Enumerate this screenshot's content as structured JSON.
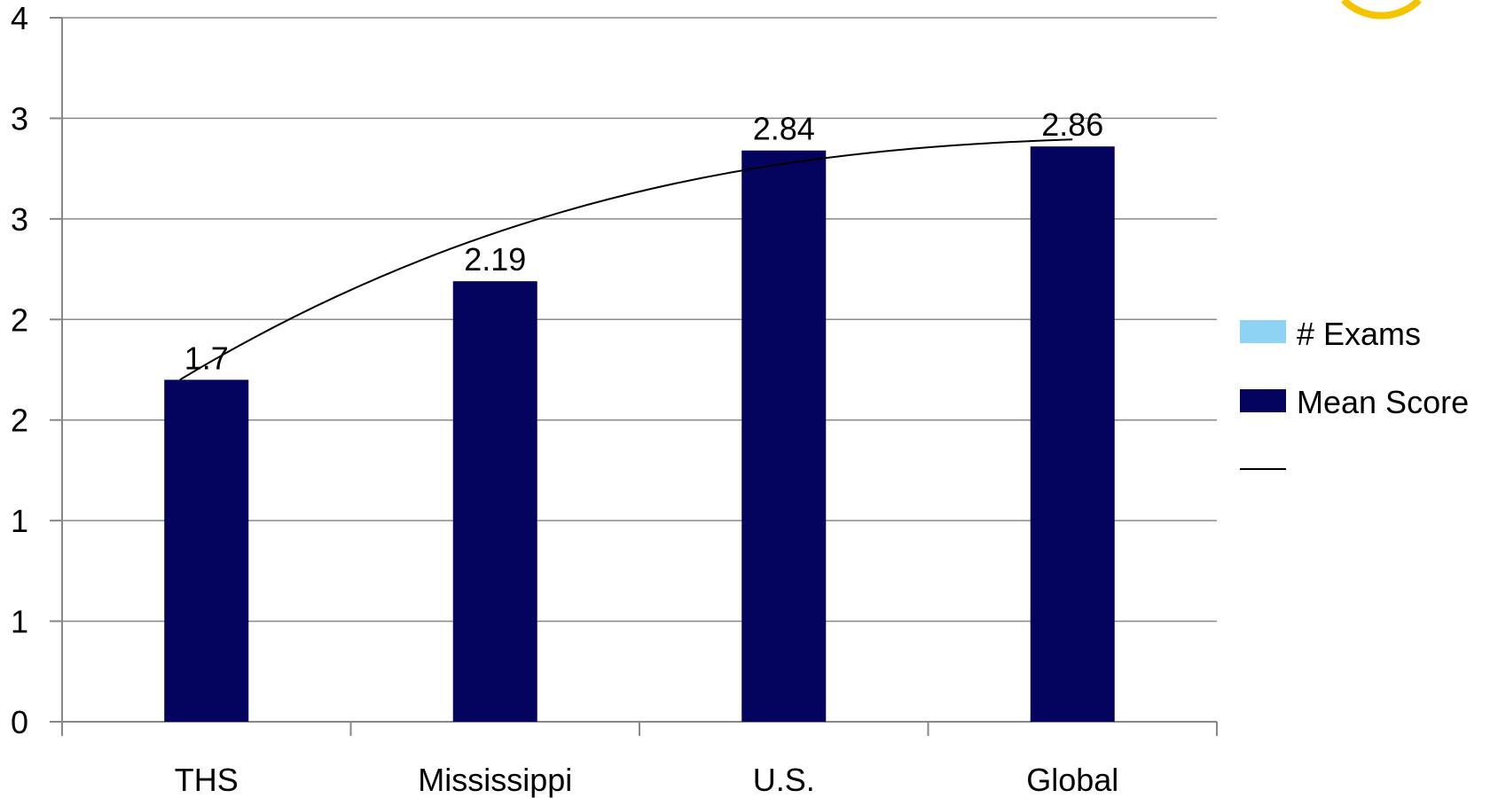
{
  "chart_data": {
    "type": "bar",
    "categories": [
      "THS",
      "Mississippi",
      "U.S.",
      "Global"
    ],
    "series": [
      {
        "name": "# Exams",
        "values": [
          null,
          null,
          null,
          null
        ],
        "color": "#8fd3f4"
      },
      {
        "name": "Mean Score",
        "values": [
          1.7,
          2.19,
          2.84,
          2.86
        ],
        "data_labels": [
          "1.7",
          "2.19",
          "2.84",
          "2.86"
        ],
        "color": "#04045e"
      }
    ],
    "trendline": {
      "type": "curve",
      "color": "#000000",
      "name": ""
    },
    "y_tick_labels": [
      "0",
      "1",
      "1",
      "2",
      "2",
      "3",
      "3",
      "4"
    ],
    "ylim": [
      0,
      3.5
    ],
    "y_tick_step": 0.5,
    "grid": true,
    "legend_position": "right",
    "title": "",
    "xlabel": "",
    "ylabel": ""
  },
  "decor": {
    "corner_badge_color": "#f5c400"
  }
}
